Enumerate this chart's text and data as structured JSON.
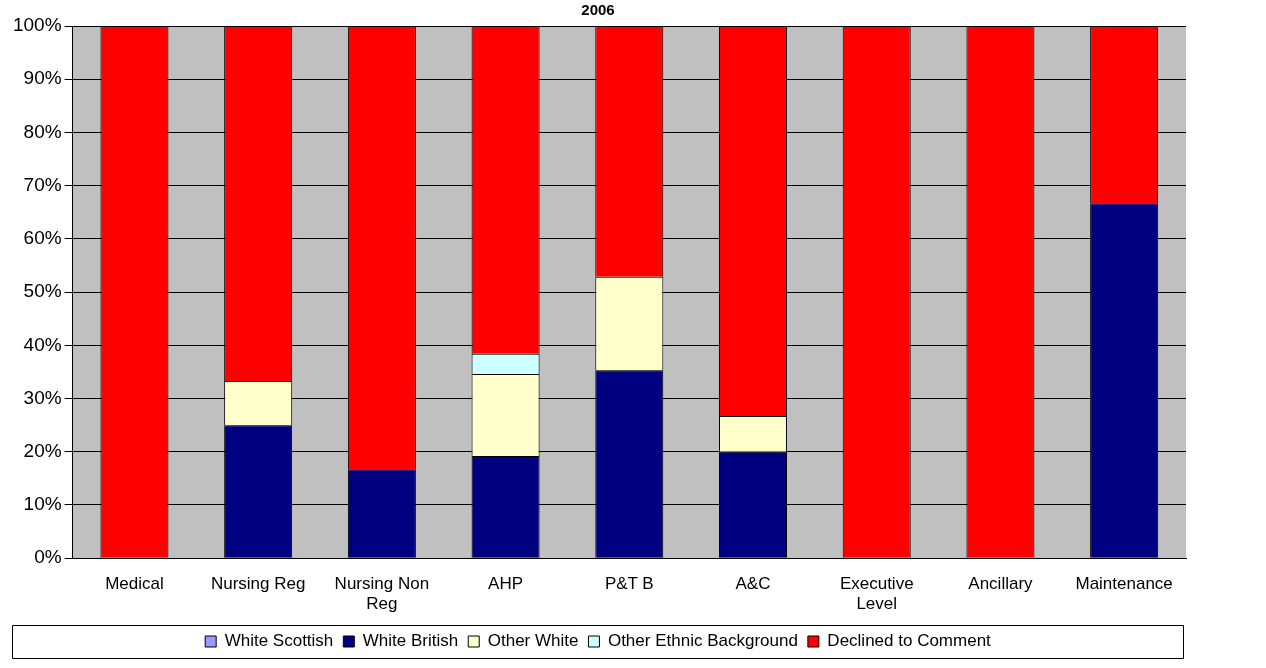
{
  "chart_data": {
    "type": "bar",
    "title": "2006",
    "stacked": true,
    "grid": "y",
    "legend": "bottom",
    "categories": [
      "Medical",
      "Nursing Reg",
      "Nursing Non Reg",
      "AHP",
      "P&T B",
      "A&C",
      "Executive Level",
      "Ancillary",
      "Maintenance"
    ],
    "series": [
      {
        "name": "White Scottish",
        "color": "#9999ff",
        "values": [
          0,
          0,
          0,
          0,
          0,
          0,
          0,
          0,
          0
        ]
      },
      {
        "name": "White British",
        "color": "#000080",
        "values": [
          0,
          25,
          16.7,
          19.2,
          35.3,
          20,
          0,
          0,
          66.7
        ]
      },
      {
        "name": "Other White",
        "color": "#ffffcc",
        "values": [
          0,
          8.3,
          0,
          15.4,
          17.6,
          6.7,
          0,
          0,
          0
        ]
      },
      {
        "name": "Other Ethnic Background",
        "color": "#ccffff",
        "values": [
          0,
          0,
          0,
          3.8,
          0,
          0,
          0,
          0,
          0
        ]
      },
      {
        "name": "Declined to Comment",
        "color": "#ff0000",
        "values": [
          100,
          66.7,
          83.3,
          61.6,
          47.1,
          73.3,
          100,
          100,
          33.3
        ]
      }
    ],
    "ylim": [
      0,
      100
    ],
    "yticks": [
      {
        "value": 0,
        "label": "0%"
      },
      {
        "value": 10,
        "label": "10%"
      },
      {
        "value": 20,
        "label": "20%"
      },
      {
        "value": 30,
        "label": "30%"
      },
      {
        "value": 40,
        "label": "40%"
      },
      {
        "value": 50,
        "label": "50%"
      },
      {
        "value": 60,
        "label": "60%"
      },
      {
        "value": 70,
        "label": "70%"
      },
      {
        "value": 80,
        "label": "80%"
      },
      {
        "value": 90,
        "label": "90%"
      },
      {
        "value": 100,
        "label": "100%"
      }
    ]
  }
}
